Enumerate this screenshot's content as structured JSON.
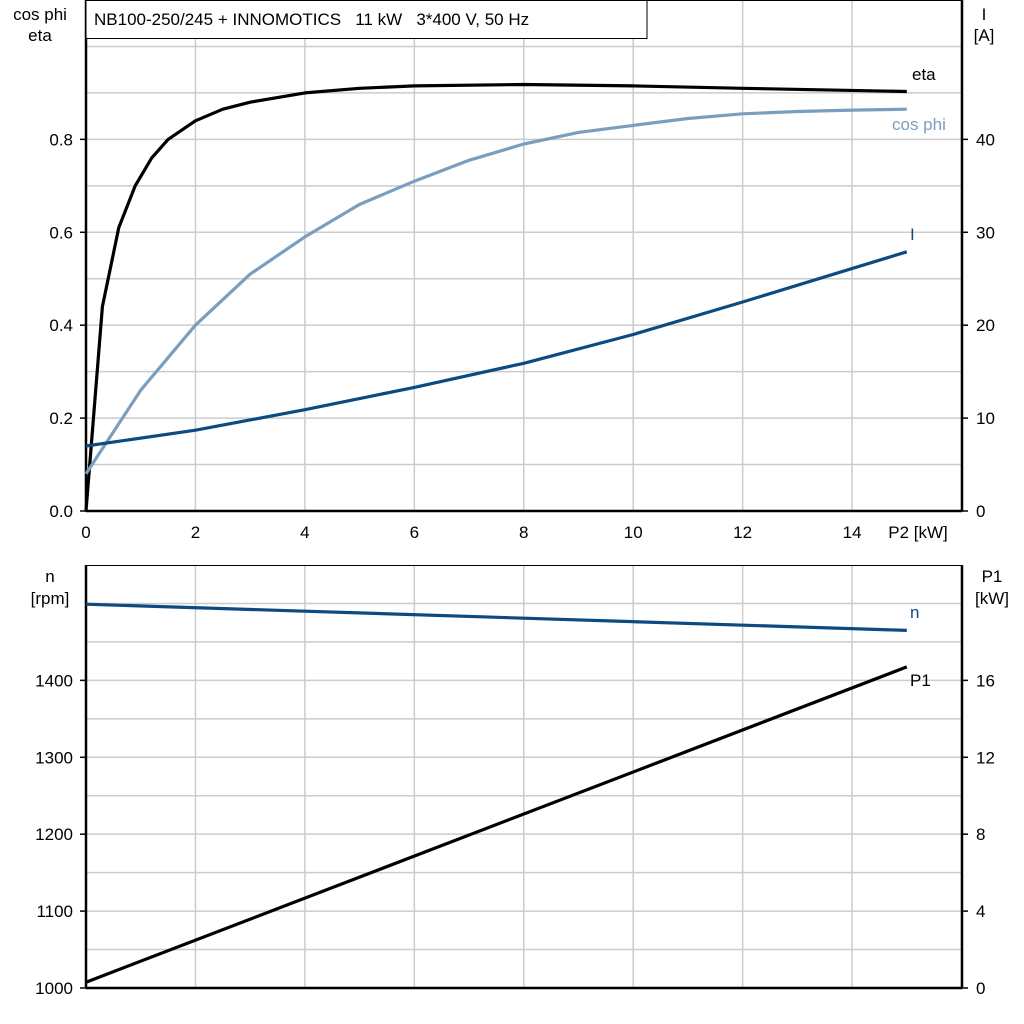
{
  "chart_data": [
    {
      "type": "line",
      "title": "NB100-250/245 + INNOMOTICS   11 kW   3*400 V, 50 Hz",
      "xlabel": "P2 [kW]",
      "ylabel_left": [
        "cos phi",
        "eta"
      ],
      "ylabel_right": [
        "I",
        "[A]"
      ],
      "xlim": [
        0,
        16
      ],
      "ylim_left": [
        0,
        1.1
      ],
      "ylim_right": [
        0,
        55
      ],
      "x_ticks": [
        0,
        2,
        4,
        6,
        8,
        10,
        12,
        14
      ],
      "y_ticks_left": [
        "0.0",
        "0.2",
        "0.4",
        "0.6",
        "0.8"
      ],
      "y_ticks_right": [
        "0",
        "10",
        "20",
        "30",
        "40"
      ],
      "grid": true,
      "series": [
        {
          "name": "eta",
          "axis": "left",
          "color": "#000000",
          "x": [
            0,
            0.3,
            0.6,
            0.9,
            1.2,
            1.5,
            2,
            2.5,
            3,
            4,
            5,
            6,
            8,
            10,
            12,
            15
          ],
          "y": [
            0,
            0.44,
            0.61,
            0.7,
            0.76,
            0.8,
            0.84,
            0.865,
            0.88,
            0.9,
            0.91,
            0.915,
            0.918,
            0.915,
            0.91,
            0.903
          ]
        },
        {
          "name": "cos phi",
          "axis": "left",
          "color": "#7a9ebe",
          "x": [
            0,
            1,
            2,
            3,
            4,
            5,
            6,
            7,
            8,
            9,
            10,
            11,
            12,
            13,
            14,
            15
          ],
          "y": [
            0.08,
            0.26,
            0.4,
            0.51,
            0.59,
            0.66,
            0.71,
            0.755,
            0.79,
            0.815,
            0.83,
            0.845,
            0.855,
            0.86,
            0.863,
            0.865
          ]
        },
        {
          "name": "I",
          "axis": "right",
          "color": "#0d4a80",
          "x": [
            0,
            2,
            4,
            6,
            8,
            10,
            12,
            15
          ],
          "y": [
            7.0,
            8.7,
            10.9,
            13.3,
            15.9,
            19.0,
            22.5,
            27.9
          ]
        }
      ]
    },
    {
      "type": "line",
      "ylabel_left": [
        "n",
        "[rpm]"
      ],
      "ylabel_right": [
        "P1",
        "[kW]"
      ],
      "xlim": [
        0,
        16
      ],
      "ylim_left": [
        1000,
        1550
      ],
      "ylim_right": [
        0,
        22
      ],
      "y_ticks_left": [
        "1000",
        "1100",
        "1200",
        "1300",
        "1400"
      ],
      "y_ticks_right": [
        "0",
        "4",
        "8",
        "12",
        "16"
      ],
      "grid": true,
      "series": [
        {
          "name": "n",
          "axis": "left",
          "color": "#0d4a80",
          "x": [
            0,
            15
          ],
          "y": [
            1499,
            1465
          ]
        },
        {
          "name": "P1",
          "axis": "right",
          "color": "#000000",
          "x": [
            0,
            15
          ],
          "y": [
            0.3,
            16.7
          ]
        }
      ]
    }
  ]
}
